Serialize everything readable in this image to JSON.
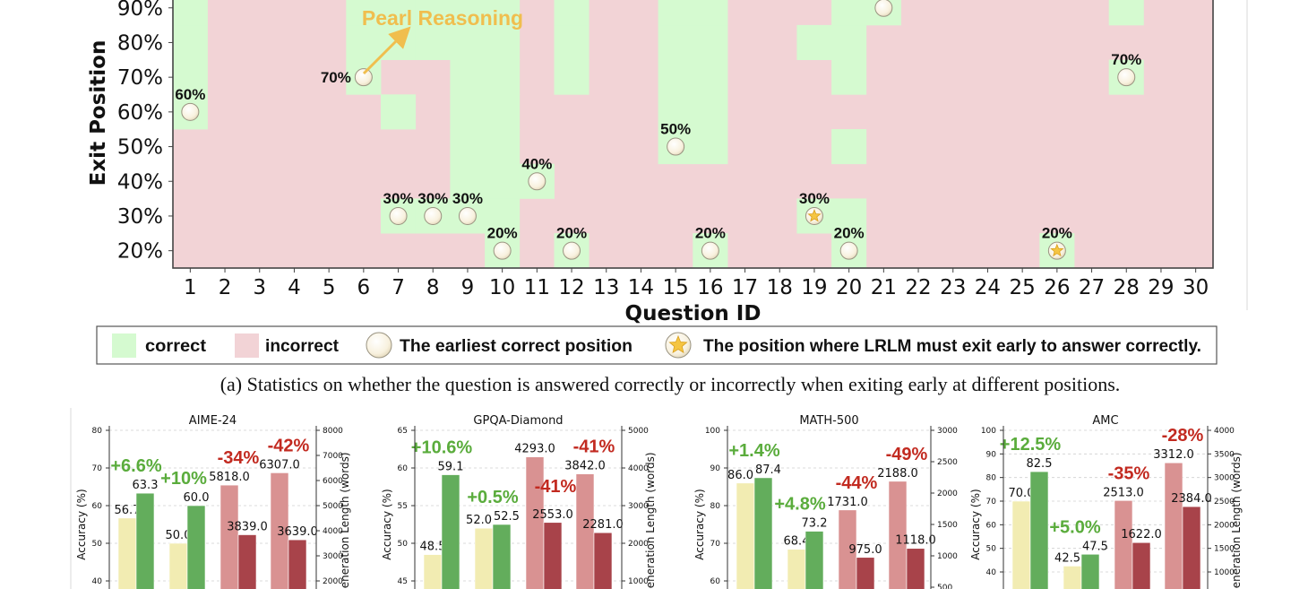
{
  "colors": {
    "correct": "#d5fad0",
    "incorrect": "#f2d3d6",
    "marker": "#fbf6e4",
    "annotation": "#f0be4e",
    "acc_base": "#f2ecb2",
    "acc_ours": "#63ad5c",
    "len_base": "#d99292",
    "len_ours": "#a8434a",
    "gain": "#5aac3c",
    "drop": "#c22a20"
  },
  "chart_data": [
    {
      "type": "heatmap",
      "xlabel": "Question ID",
      "ylabel": "Exit Position",
      "x_ticks": [
        "1",
        "2",
        "3",
        "4",
        "5",
        "6",
        "7",
        "8",
        "9",
        "10",
        "11",
        "12",
        "13",
        "14",
        "15",
        "16",
        "17",
        "18",
        "19",
        "20",
        "21",
        "22",
        "23",
        "24",
        "25",
        "26",
        "27",
        "28",
        "29",
        "30"
      ],
      "y_ticks": [
        "20%",
        "30%",
        "40%",
        "50%",
        "60%",
        "70%",
        "80%",
        "90%"
      ],
      "y_values": [
        20,
        30,
        40,
        50,
        60,
        70,
        80,
        90
      ],
      "correct_cells": {
        "1": [
          60,
          70,
          80,
          90
        ],
        "6": [
          70,
          80,
          90
        ],
        "7": [
          30,
          60,
          80,
          90
        ],
        "8": [
          30,
          80,
          90
        ],
        "9": [
          30,
          40,
          50,
          60,
          70,
          80,
          90
        ],
        "10": [
          20,
          30,
          40,
          50,
          60,
          70,
          80,
          90
        ],
        "11": [
          40
        ],
        "12": [
          20,
          70,
          80,
          90
        ],
        "15": [
          50,
          60,
          70,
          80,
          90
        ],
        "16": [
          20,
          50,
          60,
          70,
          80,
          90
        ],
        "19": [
          30,
          80
        ],
        "20": [
          20,
          30,
          50,
          70,
          80,
          90
        ],
        "21": [
          90
        ],
        "26": [
          20
        ],
        "28": [
          70,
          90
        ]
      },
      "markers": [
        {
          "question": 1,
          "position": 60,
          "kind": "earliest",
          "label": "60%"
        },
        {
          "question": 6,
          "position": 70,
          "kind": "earliest",
          "label": "70%"
        },
        {
          "question": 7,
          "position": 30,
          "kind": "earliest",
          "label": "30%"
        },
        {
          "question": 8,
          "position": 30,
          "kind": "earliest",
          "label": "30%"
        },
        {
          "question": 9,
          "position": 30,
          "kind": "earliest",
          "label": "30%"
        },
        {
          "question": 10,
          "position": 20,
          "kind": "earliest",
          "label": "20%"
        },
        {
          "question": 11,
          "position": 40,
          "kind": "earliest",
          "label": "40%"
        },
        {
          "question": 12,
          "position": 20,
          "kind": "earliest",
          "label": "20%"
        },
        {
          "question": 15,
          "position": 50,
          "kind": "earliest",
          "label": "50%"
        },
        {
          "question": 16,
          "position": 20,
          "kind": "earliest",
          "label": "20%"
        },
        {
          "question": 19,
          "position": 30,
          "kind": "must-exit",
          "label": "30%"
        },
        {
          "question": 20,
          "position": 20,
          "kind": "earliest",
          "label": "20%"
        },
        {
          "question": 21,
          "position": 90,
          "kind": "earliest",
          "label": ""
        },
        {
          "question": 26,
          "position": 20,
          "kind": "must-exit",
          "label": "20%"
        },
        {
          "question": 28,
          "position": 70,
          "kind": "earliest",
          "label": "70%"
        }
      ],
      "annotation": "Pearl Reasoning",
      "legend": {
        "correct": "correct",
        "incorrect": "incorrect",
        "earliest": "The earliest correct position",
        "must_exit": "The position where LRLM must exit early to answer correctly."
      },
      "caption": "(a) Statistics on whether the question is answered correctly or incorrectly when exiting early at different positions."
    },
    {
      "type": "bar",
      "title": "AIME-24",
      "ylabel": "Accuracy (%)",
      "y2label": "Generation Length (words)",
      "ylim_top": 80,
      "y_ticks": [
        40,
        50,
        60,
        70,
        80
      ],
      "y2lim_top": 8000,
      "y2_ticks": [
        2000,
        3000,
        4000,
        5000,
        6000,
        7000,
        8000
      ],
      "accuracy": [
        [
          56.7,
          63.3
        ],
        [
          50.0,
          60.0
        ]
      ],
      "length": [
        [
          5818.0,
          3839.0
        ],
        [
          6307.0,
          3639.0
        ]
      ],
      "accuracy_labels": [
        [
          "56.7",
          "63.3"
        ],
        [
          "50.0",
          "60.0"
        ]
      ],
      "length_labels": [
        [
          "5818.0",
          "3839.0"
        ],
        [
          "6307.0",
          "3639.0"
        ]
      ],
      "changes": [
        "+6.6%",
        "+10%",
        "-34%",
        "-42%"
      ]
    },
    {
      "type": "bar",
      "title": "GPQA-Diamond",
      "ylabel": "Accuracy (%)",
      "y2label": "Generation Length (words)",
      "ylim_top": 65,
      "y_ticks": [
        45,
        50,
        55,
        60,
        65
      ],
      "y2lim_top": 5000,
      "y2_ticks": [
        1000,
        2000,
        3000,
        4000,
        5000
      ],
      "accuracy": [
        [
          48.5,
          59.1
        ],
        [
          52.0,
          52.5
        ]
      ],
      "length": [
        [
          4293.0,
          2553.0
        ],
        [
          3842.0,
          2281.0
        ]
      ],
      "accuracy_labels": [
        [
          "48.5",
          "59.1"
        ],
        [
          "52.0",
          "52.5"
        ]
      ],
      "length_labels": [
        [
          "4293.0",
          "2553.0"
        ],
        [
          "3842.0",
          "2281.0"
        ]
      ],
      "changes": [
        "+10.6%",
        "+0.5%",
        "-41%",
        "-41%"
      ]
    },
    {
      "type": "bar",
      "title": "MATH-500",
      "ylabel": "Accuracy (%)",
      "y2label": "",
      "ylim_top": 100,
      "y_ticks": [
        60,
        70,
        80,
        90,
        100
      ],
      "y2lim_top": 3000,
      "y2_ticks": [
        500,
        1000,
        1500,
        2000,
        2500,
        3000
      ],
      "accuracy": [
        [
          86.0,
          87.4
        ],
        [
          68.4,
          73.2
        ]
      ],
      "length": [
        [
          1731.0,
          975.0
        ],
        [
          2188.0,
          1118.0
        ]
      ],
      "accuracy_labels": [
        [
          "86.0",
          "87.4"
        ],
        [
          "68.4",
          "73.2"
        ]
      ],
      "length_labels": [
        [
          "1731.0",
          "975.0"
        ],
        [
          "2188.0",
          "1118.0"
        ]
      ],
      "changes": [
        "+1.4%",
        "+4.8%",
        "-44%",
        "-49%"
      ]
    },
    {
      "type": "bar",
      "title": "AMC",
      "ylabel": "Accuracy (%)",
      "y2label": "Generation Length (words)",
      "ylim_top": 100,
      "y_ticks": [
        40,
        50,
        60,
        70,
        80,
        90,
        100
      ],
      "y2lim_top": 4000,
      "y2_ticks": [
        1000,
        1500,
        2000,
        2500,
        3000,
        3500,
        4000
      ],
      "accuracy": [
        [
          70.0,
          82.5
        ],
        [
          42.5,
          47.5
        ]
      ],
      "length": [
        [
          2513.0,
          1622.0
        ],
        [
          3312.0,
          2384.0
        ]
      ],
      "accuracy_labels": [
        [
          "70.0",
          "82.5"
        ],
        [
          "42.5",
          "47.5"
        ]
      ],
      "length_labels": [
        [
          "2513.0",
          "1622.0"
        ],
        [
          "3312.0",
          "2384.0"
        ]
      ],
      "changes": [
        "+12.5%",
        "+5.0%",
        "-35%",
        "-28%"
      ]
    }
  ]
}
